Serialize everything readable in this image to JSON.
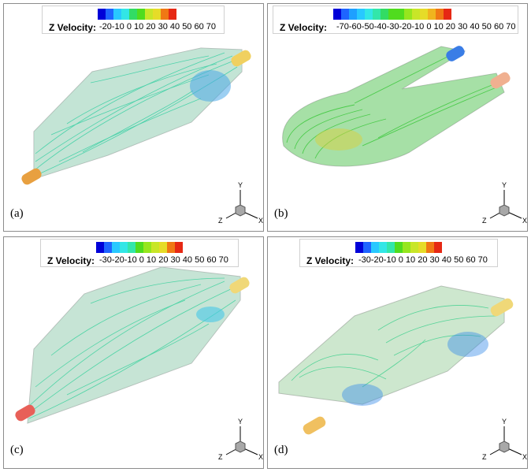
{
  "colormap": [
    "#0000d8",
    "#1e64ff",
    "#1ea0ff",
    "#28c8ff",
    "#32e6e6",
    "#32e6aa",
    "#32dc64",
    "#50dc1e",
    "#96e61e",
    "#c8e628",
    "#e6dc28",
    "#f0b41e",
    "#f07814",
    "#e62814"
  ],
  "panels": [
    {
      "id": "a",
      "label": "(a)",
      "legend_title": "Z Velocity:",
      "ticks": "-20-10  0  10  20  30  40  50  60  70"
    },
    {
      "id": "b",
      "label": "(b)",
      "legend_title": "Z Velocity:",
      "ticks": "-70-60-50-40-30-20-10  0  10  20  30  40  50  60  70"
    },
    {
      "id": "c",
      "label": "(c)",
      "legend_title": "Z Velocity:",
      "ticks": "-30-20-10  0  10  20  30  40  50  60  70"
    },
    {
      "id": "d",
      "label": "(d)",
      "legend_title": "Z Velocity:",
      "ticks": "-30-20-10  0  10  20  30  40  50  60  70"
    }
  ],
  "axes_labels": {
    "x": "X",
    "y": "Y",
    "z": "Z"
  }
}
